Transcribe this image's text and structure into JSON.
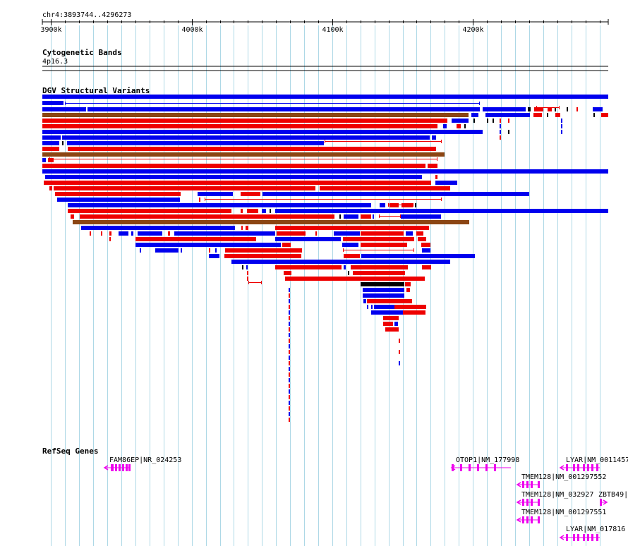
{
  "ruler": {
    "location": "chr4:3893744..4296273",
    "start": 3893744,
    "end": 4296273,
    "ticks": [
      {
        "pos": 3900000,
        "label": "3900k"
      },
      {
        "pos": 4000000,
        "label": "4000k"
      },
      {
        "pos": 4100000,
        "label": "4100k"
      },
      {
        "pos": 4200000,
        "label": "4200k"
      }
    ]
  },
  "tracks": {
    "cytobands": {
      "title": "Cytogenetic Bands",
      "band": "4p16.3"
    },
    "dgv": {
      "title": "DGV Structural Variants"
    },
    "refseq": {
      "title": "RefSeq Genes"
    }
  },
  "colors": {
    "gain": "#0000ee",
    "loss": "#ee0000",
    "gainloss": "#8b4513",
    "inversion": "#000000",
    "gene": "#ee00ee",
    "grid": "#add8e6"
  },
  "genes": [
    {
      "label": "FAM86EP|NR_024253"
    },
    {
      "label": "OTOP1|NM_177998"
    },
    {
      "label": "LYAR|NM_0011457"
    },
    {
      "label": "TMEM128|NM_001297552"
    },
    {
      "label": "TMEM128|NM_032927"
    },
    {
      "label": "ZBTB49|"
    },
    {
      "label": "TMEM128|NM_001297551"
    },
    {
      "label": "LYAR|NM_017816"
    }
  ]
}
